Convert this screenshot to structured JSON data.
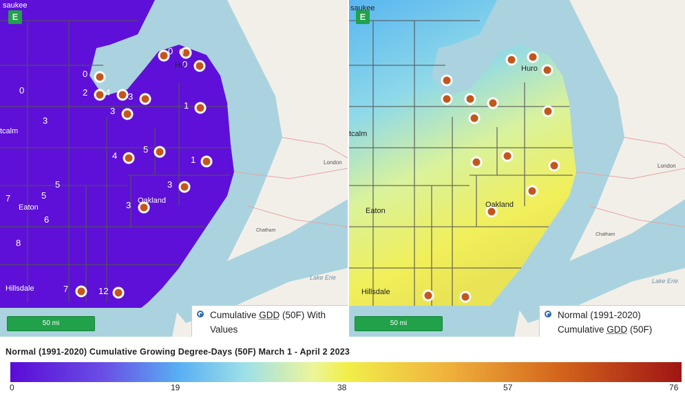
{
  "colors": {
    "water": "#aad3df",
    "land": "#f2efe9",
    "badge": "#21a14a",
    "marker_fill": "#c4561c",
    "marker_ring": "#ffffff",
    "county_border": "#555555"
  },
  "left_map": {
    "layer_badge": "E",
    "scale_label": "50 mi",
    "legend": {
      "line1": "Cumulative ",
      "gdd": "GDD",
      "line1_end": " (50F) With",
      "line2": "Values"
    },
    "labels": {
      "saukee": "saukee",
      "huron": "Hu",
      "calm": "tcalm",
      "eaton": "Eaton",
      "oakland": "Oakland",
      "hillsdale": "Hillsdale",
      "erie": "Lake Erie",
      "london": "London",
      "chatham": "Chatham"
    },
    "station_values": [
      "0",
      "0",
      "0",
      "0",
      "2",
      "4",
      "3",
      "3",
      "1",
      "5",
      "4",
      "1",
      "3",
      "3",
      "7",
      "12"
    ],
    "grid_values": [
      "0",
      "3",
      "5",
      "5",
      "7",
      "6",
      "8"
    ]
  },
  "right_map": {
    "layer_badge": "E",
    "scale_label": "50 mi",
    "legend": {
      "line1": "Normal (1991-2020)",
      "line2_pre": "Cumulative ",
      "gdd": "GDD",
      "line2_end": " (50F)"
    },
    "labels": {
      "saukee": "saukee",
      "huron": "Huro",
      "calm": "tcalm",
      "eaton": "Eaton",
      "oakland": "Oakland",
      "hillsdale": "Hillsdale",
      "erie": "Lake Erie",
      "london": "London",
      "chatham": "Chatham"
    }
  },
  "footer": {
    "title": "Normal (1991-2020) Cumulative Growing Degree-Days (50F) March 1 - April 2 2023",
    "colorbar_ticks": [
      "0",
      "19",
      "38",
      "57",
      "76"
    ]
  }
}
